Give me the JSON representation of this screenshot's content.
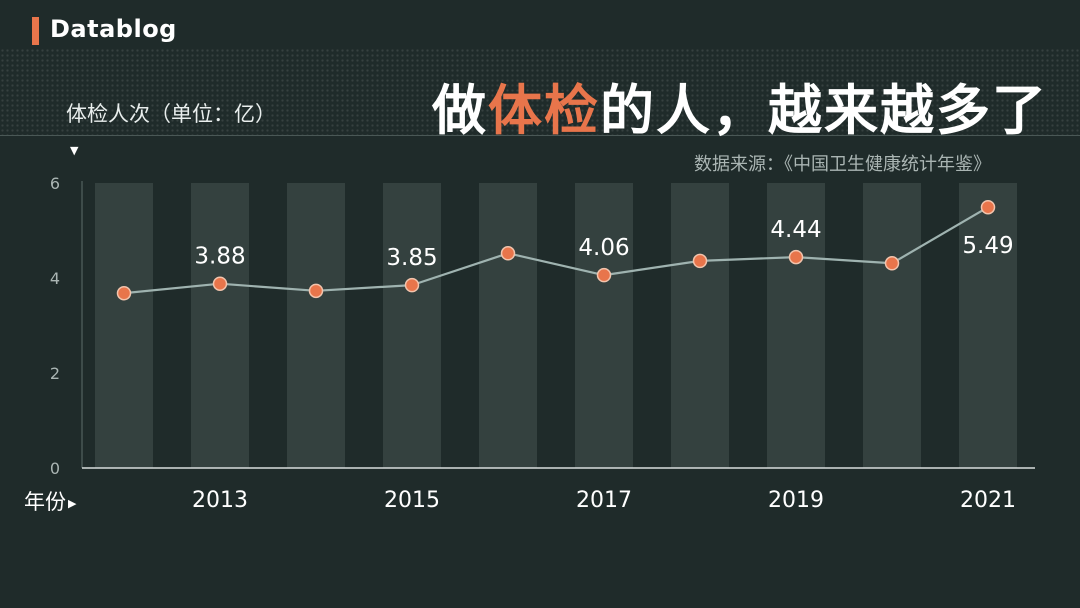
{
  "brand": {
    "name": "Datablog"
  },
  "headline": {
    "pre": "做",
    "highlight": "体检",
    "post": "的人，越来越多了"
  },
  "y_unit_label": "体检人次（单位：亿）",
  "x_axis_name": "年份",
  "source_text": "数据来源：《中国卫生健康统计年鉴》",
  "colors": {
    "background": "#1f2b2a",
    "accent": "#e8754b",
    "bar": "#34413f",
    "line": "#9fb3b0",
    "text": "#ffffff"
  },
  "chart_data": {
    "type": "line",
    "x": [
      2012,
      2013,
      2014,
      2015,
      2016,
      2017,
      2018,
      2019,
      2020,
      2021
    ],
    "values": [
      3.68,
      3.88,
      3.73,
      3.85,
      4.52,
      4.06,
      4.36,
      4.44,
      4.31,
      5.49
    ],
    "data_labels": [
      {
        "x": 2013,
        "label": "3.88"
      },
      {
        "x": 2015,
        "label": "3.85"
      },
      {
        "x": 2017,
        "label": "4.06"
      },
      {
        "x": 2019,
        "label": "4.44"
      },
      {
        "x": 2021,
        "label": "5.49"
      }
    ],
    "x_tick_labels": [
      "2013",
      "2015",
      "2017",
      "2019",
      "2021"
    ],
    "y_ticks": [
      "0",
      "2",
      "4",
      "6"
    ],
    "ylim": [
      0,
      6
    ],
    "background_columns": true,
    "grid": false
  }
}
